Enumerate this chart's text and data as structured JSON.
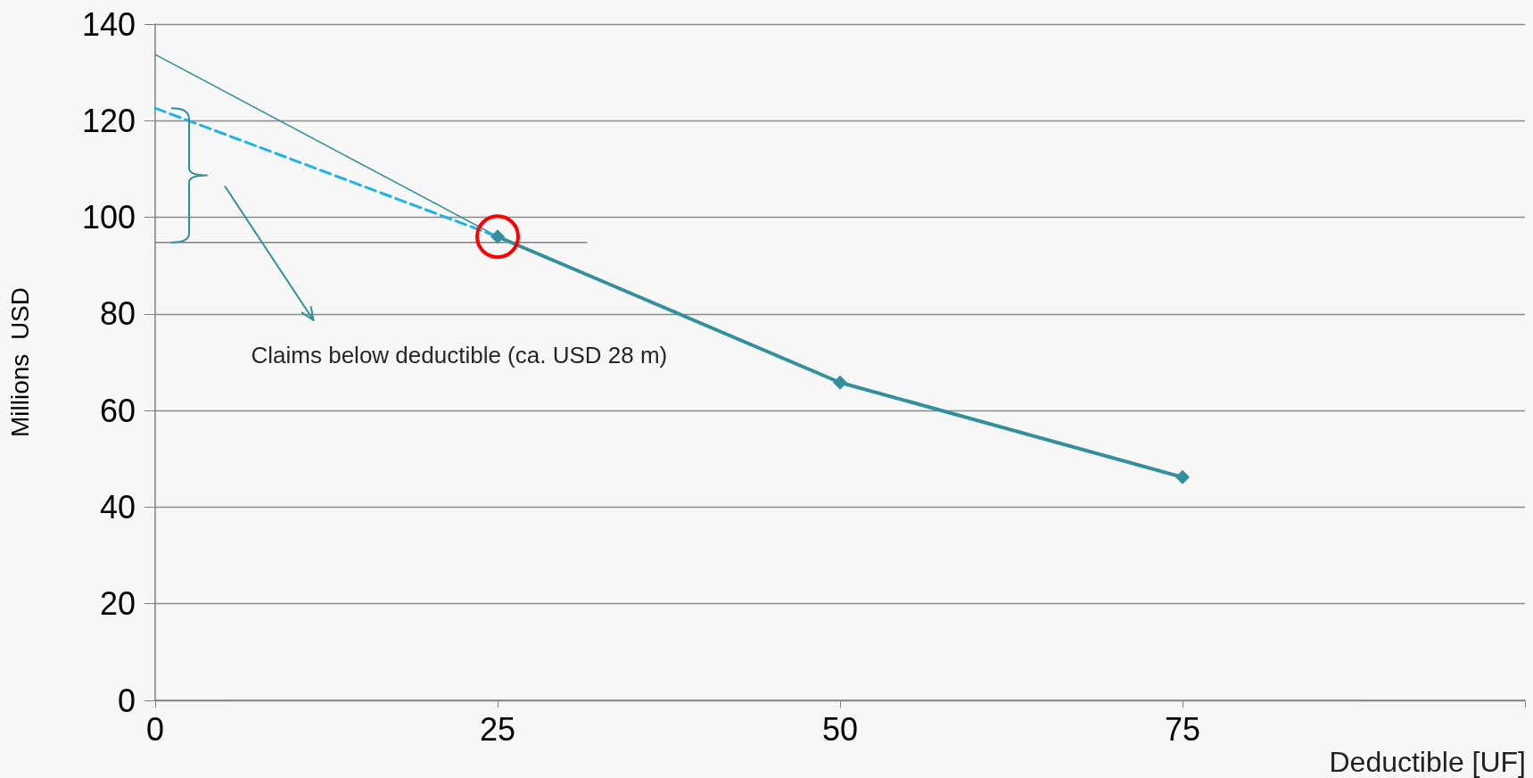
{
  "chart_data": {
    "type": "line",
    "xlabel": "Deductible [UF]",
    "ylabel": "Millions  USD",
    "xlim": [
      0,
      100
    ],
    "xticks": [
      0,
      25,
      50,
      75,
      {
        "value": 100,
        "label": null
      }
    ],
    "ylim": [
      0,
      140
    ],
    "yticks": [
      0,
      20,
      40,
      60,
      80,
      100,
      120,
      140
    ],
    "grid": "y",
    "series": [
      {
        "color": "#31909c",
        "x": [
          25,
          50,
          75
        ],
        "values": [
          96,
          65.8,
          46.2
        ],
        "marker": "diamond",
        "line_style": "solid"
      },
      {
        "color": "#1fb4e6",
        "x": [
          0,
          25
        ],
        "values": [
          122.6,
          96
        ],
        "marker": "none",
        "line_style": "dashed"
      },
      {
        "color": "#31909c",
        "x": [
          0,
          25
        ],
        "values": [
          133.7,
          96
        ],
        "marker": "none",
        "line_style": "solid"
      },
      {
        "color": "#808080",
        "x": [
          0,
          31.5
        ],
        "values": [
          94.8,
          94.8
        ],
        "marker": "none",
        "line_style": "solid"
      }
    ],
    "annotations": [
      "Claims below deductible (ca. USD 28 m)"
    ]
  }
}
